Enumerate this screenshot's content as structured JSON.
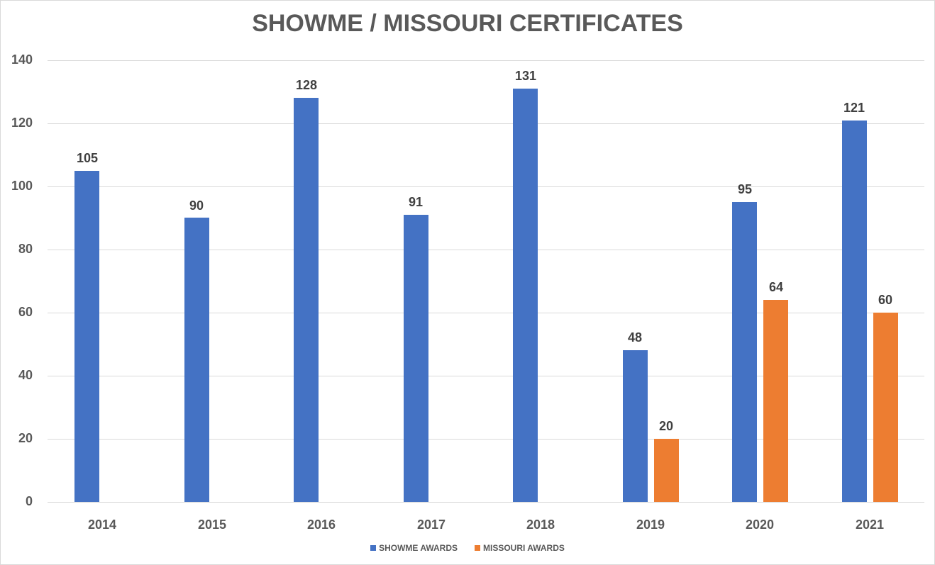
{
  "chart_data": {
    "type": "bar",
    "title": "SHOWME / MISSOURI CERTIFICATES",
    "xlabel": "",
    "ylabel": "",
    "categories": [
      "2014",
      "2015",
      "2016",
      "2017",
      "2018",
      "2019",
      "2020",
      "2021"
    ],
    "series": [
      {
        "name": "SHOWME AWARDS",
        "color": "#4472c4",
        "values": [
          105,
          90,
          128,
          91,
          131,
          48,
          95,
          121
        ]
      },
      {
        "name": "MISSOURI AWARDS",
        "color": "#ed7d31",
        "values": [
          null,
          null,
          null,
          null,
          null,
          20,
          64,
          60
        ]
      }
    ],
    "ylim": [
      0,
      140
    ],
    "yticks": [
      0,
      20,
      40,
      60,
      80,
      100,
      120,
      140
    ],
    "grid": true,
    "legend_position": "bottom",
    "data_labels": true
  },
  "title": "SHOWME / MISSOURI CERTIFICATES",
  "y_axis": {
    "ticks": [
      "0",
      "20",
      "40",
      "60",
      "80",
      "100",
      "120",
      "140"
    ]
  },
  "x_axis": {
    "ticks": [
      "2014",
      "2015",
      "2016",
      "2017",
      "2018",
      "2019",
      "2020",
      "2021"
    ]
  },
  "legend": {
    "items": [
      {
        "label": "SHOWME AWARDS",
        "color": "#4472c4"
      },
      {
        "label": "MISSOURI AWARDS",
        "color": "#ed7d31"
      }
    ]
  },
  "colors": {
    "showme": "#4472c4",
    "missouri": "#ed7d31",
    "grid": "#d9d9d9",
    "text": "#595959"
  }
}
